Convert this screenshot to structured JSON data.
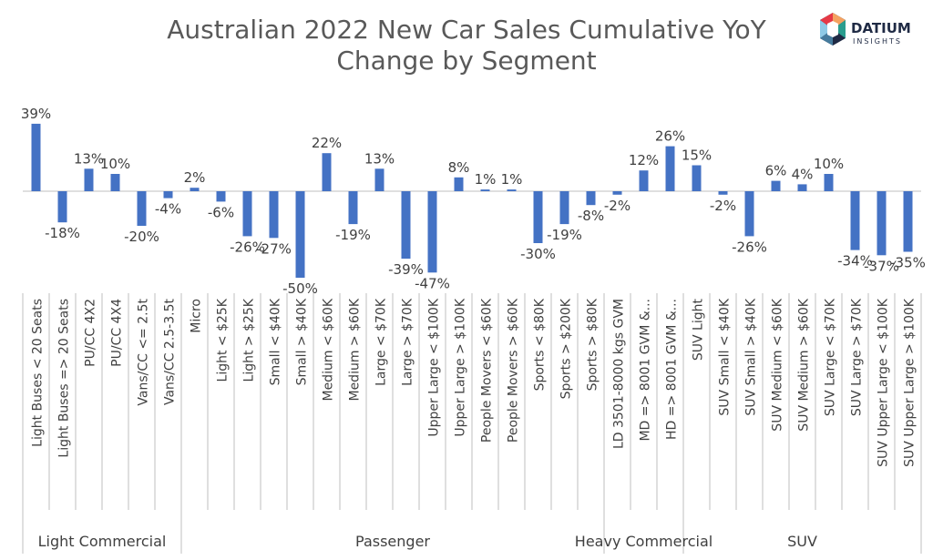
{
  "chart_data": {
    "type": "bar",
    "title_lines": [
      "Australian 2022 New Car Sales Cumulative YoY",
      "Change by Segment"
    ],
    "categories": [
      "Light Buses < 20 Seats",
      "Light Buses => 20 Seats",
      "PU/CC 4X2",
      "PU/CC 4X4",
      "Vans/CC <= 2.5t",
      "Vans/CC 2.5-3.5t",
      "Micro",
      "Light < $25K",
      "Light > $25K",
      "Small < $40K",
      "Small > $40K",
      "Medium < $60K",
      "Medium > $60K",
      "Large < $70K",
      "Large > $70K",
      "Upper Large < $100K",
      "Upper Large > $100K",
      "People Movers < $60K",
      "People Movers > $60K",
      "Sports < $80K",
      "Sports > $200K",
      "Sports > $80K",
      "LD 3501-8000 kgs GVM",
      "MD => 8001 GVM &...",
      "HD => 8001 GVM &...",
      "SUV Light",
      "SUV Small < $40K",
      "SUV Small > $40K",
      "SUV Medium < $60K",
      "SUV Medium > $60K",
      "SUV Large < $70K",
      "SUV Large > $70K",
      "SUV Upper Large < $100K",
      "SUV Upper Large > $100K"
    ],
    "values": [
      39,
      -18,
      13,
      10,
      -20,
      -4,
      2,
      -6,
      -26,
      -27,
      -50,
      22,
      -19,
      13,
      -39,
      -47,
      8,
      1,
      1,
      -30,
      -19,
      -8,
      -2,
      12,
      26,
      15,
      -2,
      -26,
      6,
      4,
      10,
      -34,
      -37,
      -35
    ],
    "value_labels": [
      "39%",
      "-18%",
      "13%",
      "10%",
      "-20%",
      "-4%",
      "2%",
      "-6%",
      "-26%",
      "-27%",
      "-50%",
      "22%",
      "-19%",
      "13%",
      "-39%",
      "-47%",
      "8%",
      "1%",
      "1%",
      "-30%",
      "-19%",
      "-8%",
      "-2%",
      "12%",
      "26%",
      "15%",
      "-2%",
      "-26%",
      "6%",
      "4%",
      "10%",
      "-34%",
      "-37%",
      "-35%"
    ],
    "groups": [
      {
        "name": "Light Commercial",
        "count": 6
      },
      {
        "name": "Passenger",
        "count": 16
      },
      {
        "name": "Heavy Commercial",
        "count": 3
      },
      {
        "name": "SUV",
        "count": 9
      }
    ],
    "ylim": [
      -50,
      39
    ],
    "bar_color": "#4472C4",
    "grid": false,
    "legend": "none"
  },
  "logo": {
    "brand": "DATIUM",
    "sub": "INSIGHTS"
  },
  "colors": {
    "text": "#404040",
    "title": "#595959",
    "axis": "#bfbfbf",
    "logo_dark": "#1f2a44"
  }
}
